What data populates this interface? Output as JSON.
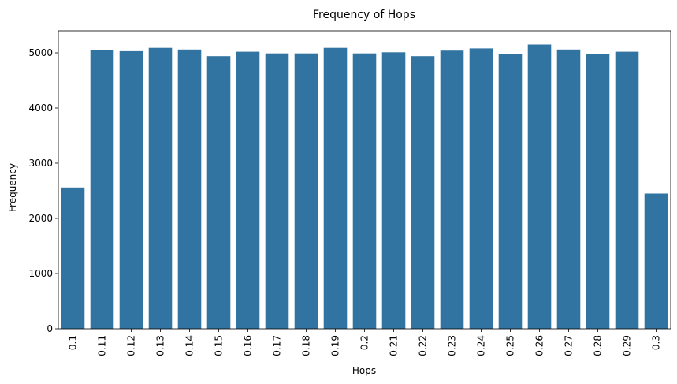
{
  "chart_data": {
    "type": "bar",
    "title": "Frequency of Hops",
    "xlabel": "Hops",
    "ylabel": "Frequency",
    "categories": [
      "0.1",
      "0.11",
      "0.12",
      "0.13",
      "0.14",
      "0.15",
      "0.16",
      "0.17",
      "0.18",
      "0.19",
      "0.2",
      "0.21",
      "0.22",
      "0.23",
      "0.24",
      "0.25",
      "0.26",
      "0.27",
      "0.28",
      "0.29",
      "0.3"
    ],
    "values": [
      2560,
      5050,
      5030,
      5090,
      5060,
      4940,
      5020,
      4990,
      4990,
      5090,
      4990,
      5010,
      4940,
      5040,
      5080,
      4980,
      5150,
      5060,
      4980,
      5020,
      2450
    ],
    "ylim": [
      0,
      5400
    ],
    "yticks": [
      0,
      1000,
      2000,
      3000,
      4000,
      5000
    ],
    "bar_color": "#3274a1",
    "grid": false
  }
}
